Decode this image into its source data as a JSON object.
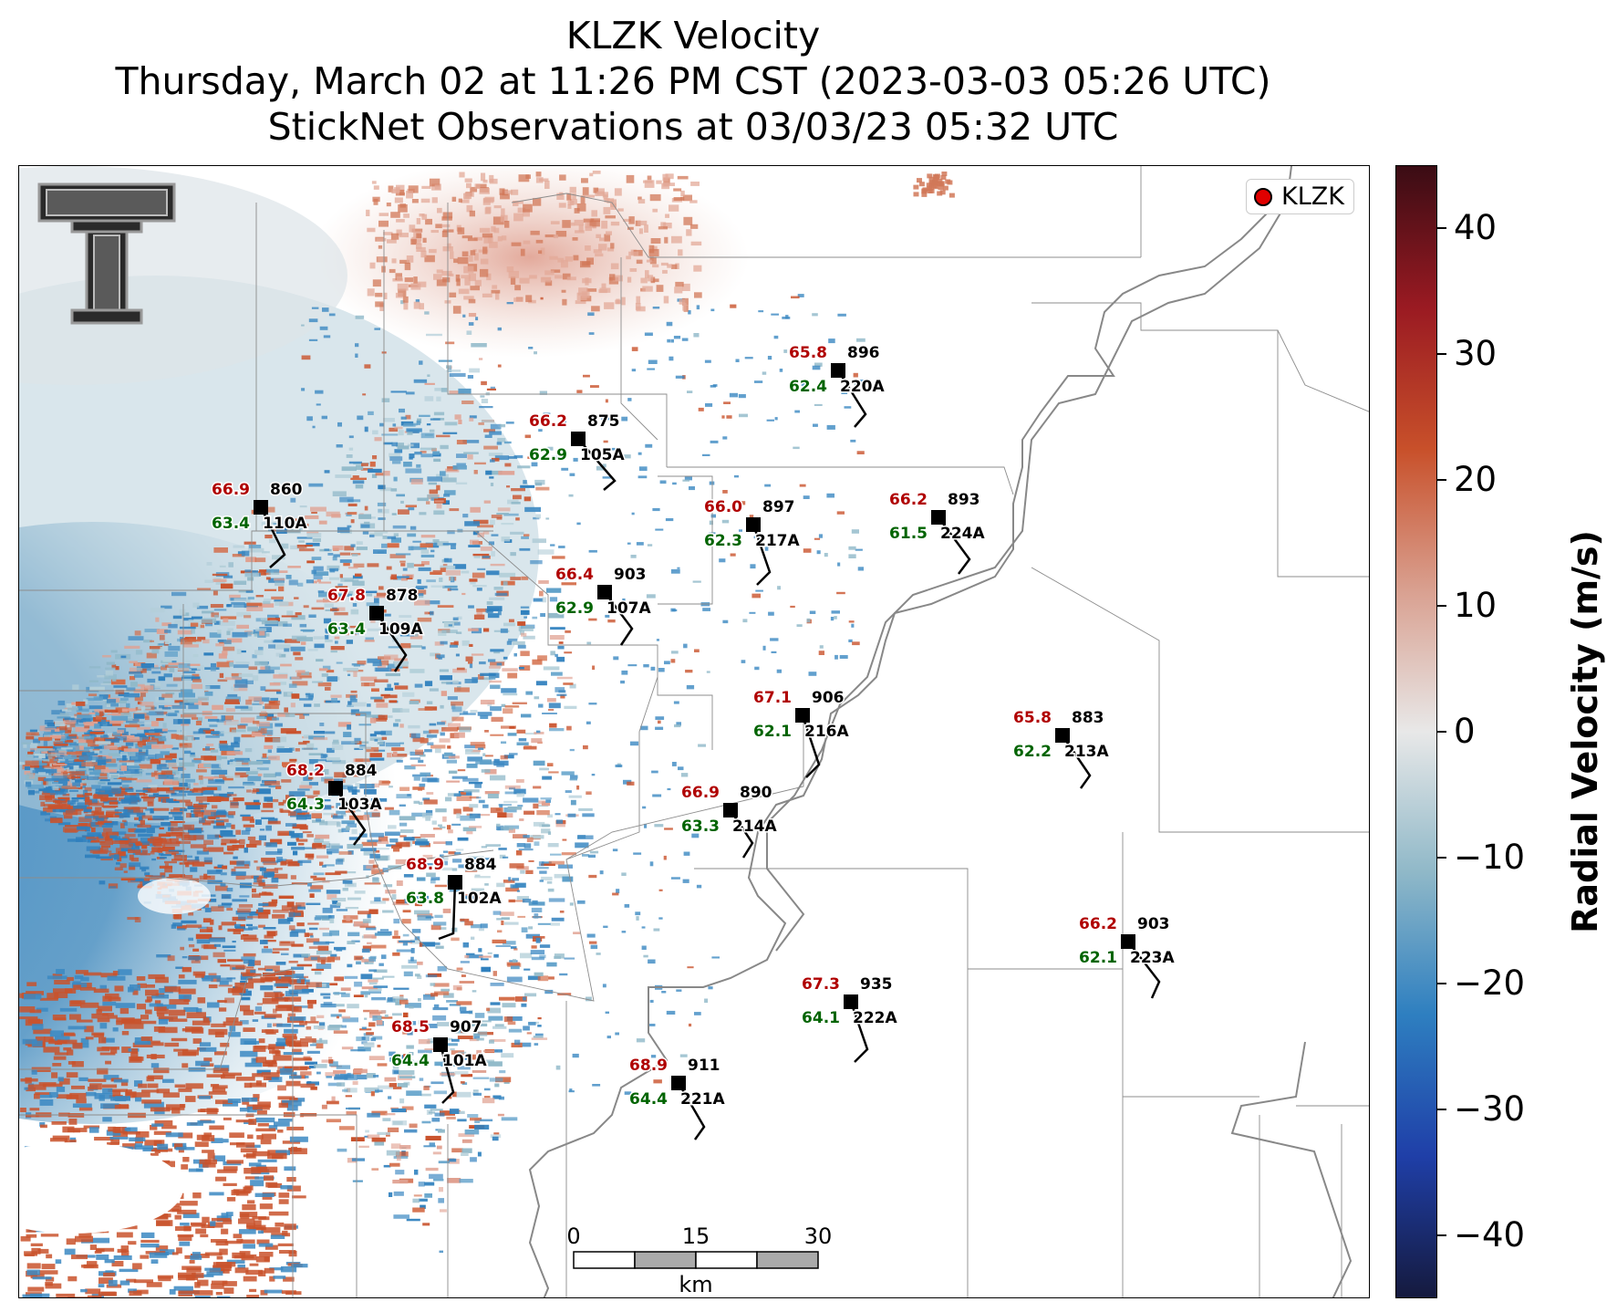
{
  "title": {
    "line1": "KLZK Velocity",
    "line2": "Thursday, March 02 at 11:26 PM CST (2023-03-03 05:26 UTC)",
    "line3": "StickNet Observations at 03/03/23 05:32 UTC"
  },
  "legend": {
    "label": "KLZK",
    "marker_color": "#e00000"
  },
  "logo": {
    "name": "texas-tech-double-t-logo"
  },
  "colorbar": {
    "label": "Radial Velocity (m/s)",
    "range": [
      -45,
      45
    ],
    "ticks": [
      "40",
      "30",
      "20",
      "10",
      "0",
      "−10",
      "−20",
      "−30",
      "−40"
    ],
    "tick_values": [
      40,
      30,
      20,
      10,
      0,
      -10,
      -20,
      -30,
      -40
    ],
    "colors": [
      "#151a3e",
      "#1f3fa8",
      "#2e7fc0",
      "#8fb8c8",
      "#e8e8e8",
      "#d9a090",
      "#c8502a",
      "#9a1a22",
      "#3a0c14"
    ]
  },
  "scalebar": {
    "ticks": [
      "0",
      "15",
      "30"
    ],
    "unit": "km"
  },
  "stations": [
    {
      "temp": "65.8",
      "pressure": "896",
      "dew": "62.4",
      "id": "220A"
    },
    {
      "temp": "66.2",
      "pressure": "875",
      "dew": "62.9",
      "id": "105A"
    },
    {
      "temp": "66.9",
      "pressure": "860",
      "dew": "63.4",
      "id": "110A"
    },
    {
      "temp": "66.0",
      "pressure": "897",
      "dew": "62.3",
      "id": "217A"
    },
    {
      "temp": "66.2",
      "pressure": "893",
      "dew": "61.5",
      "id": "224A"
    },
    {
      "temp": "67.8",
      "pressure": "878",
      "dew": "63.4",
      "id": "109A"
    },
    {
      "temp": "66.4",
      "pressure": "903",
      "dew": "62.9",
      "id": "107A"
    },
    {
      "temp": "67.1",
      "pressure": "906",
      "dew": "62.1",
      "id": "216A"
    },
    {
      "temp": "65.8",
      "pressure": "883",
      "dew": "62.2",
      "id": "213A"
    },
    {
      "temp": "68.2",
      "pressure": "884",
      "dew": "64.3",
      "id": "103A"
    },
    {
      "temp": "66.9",
      "pressure": "890",
      "dew": "63.3",
      "id": "214A"
    },
    {
      "temp": "68.9",
      "pressure": "884",
      "dew": "63.8",
      "id": "102A"
    },
    {
      "temp": "66.2",
      "pressure": "903",
      "dew": "62.1",
      "id": "223A"
    },
    {
      "temp": "67.3",
      "pressure": "935",
      "dew": "64.1",
      "id": "222A"
    },
    {
      "temp": "68.5",
      "pressure": "907",
      "dew": "64.4",
      "id": "101A"
    },
    {
      "temp": "68.9",
      "pressure": "911",
      "dew": "64.4",
      "id": "221A"
    }
  ]
}
